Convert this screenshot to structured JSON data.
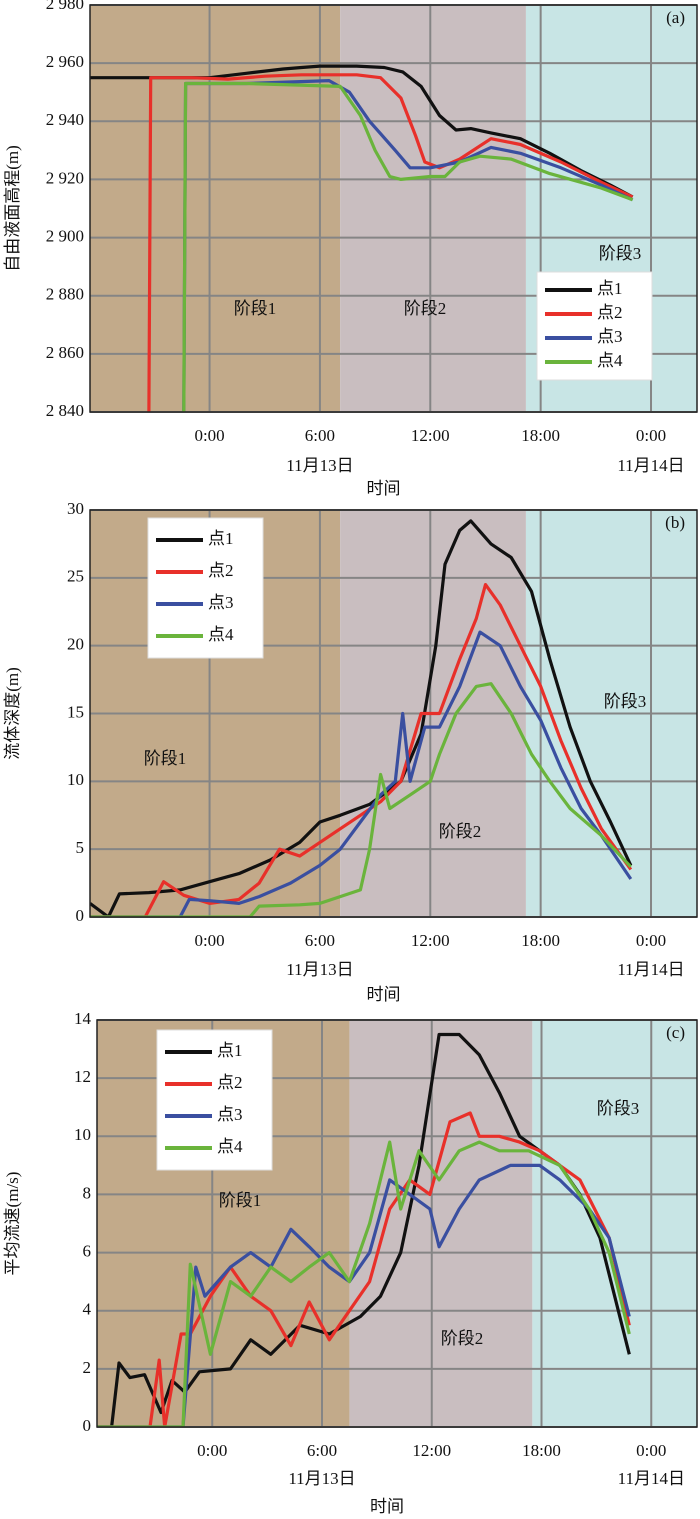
{
  "chart_data": [
    {
      "type": "line",
      "panel_label": "(a)",
      "ylabel": "自由液面高程(m)",
      "xlabel": "时间",
      "xlim": [
        -6.5,
        26.5
      ],
      "ylim": [
        2840,
        2980
      ],
      "xticks": [
        {
          "value": 0,
          "label": "0:00"
        },
        {
          "value": 6,
          "label": "6:00"
        },
        {
          "value": 12,
          "label": "12:00"
        },
        {
          "value": 18,
          "label": "18:00"
        },
        {
          "value": 24,
          "label": "0:00"
        }
      ],
      "date_labels": [
        {
          "value": 6,
          "label": "11月13日"
        },
        {
          "value": 24,
          "label": "11月14日"
        }
      ],
      "yticks": [
        {
          "value": 2840,
          "label": "2 840"
        },
        {
          "value": 2860,
          "label": "2 860"
        },
        {
          "value": 2880,
          "label": "2 880"
        },
        {
          "value": 2900,
          "label": "2 900"
        },
        {
          "value": 2920,
          "label": "2 920"
        },
        {
          "value": 2940,
          "label": "2 940"
        },
        {
          "value": 2960,
          "label": "2 960"
        },
        {
          "value": 2980,
          "label": "2 980"
        }
      ],
      "grid": true,
      "legend": "lower right",
      "stages": [
        {
          "name": "阶段1",
          "start": -6.5,
          "end": 7.1,
          "color": "#c2aa8a"
        },
        {
          "name": "阶段2",
          "start": 7.1,
          "end": 17.2,
          "color": "#c9bec0"
        },
        {
          "name": "阶段3",
          "start": 17.2,
          "end": 26.5,
          "color": "#c8e5e5"
        }
      ],
      "series": [
        {
          "name": "点1",
          "color": "#111111",
          "x": [
            -6.5,
            -2,
            0,
            2,
            4,
            5,
            6,
            8,
            9.5,
            10.5,
            11.5,
            12.5,
            13.4,
            14.2,
            15.3,
            16.9,
            18.5,
            20.2,
            21.8,
            23
          ],
          "values": [
            2955,
            2955,
            2955,
            2956.5,
            2958,
            2958.5,
            2959,
            2959,
            2958.5,
            2957,
            2952,
            2942,
            2937,
            2937.5,
            2936,
            2934,
            2929,
            2923,
            2918,
            2914
          ]
        },
        {
          "name": "点2",
          "color": "#e8302a",
          "x": [
            -3.3,
            -3.2,
            -1,
            1,
            3,
            5,
            8,
            9.3,
            10.4,
            11.2,
            11.7,
            12.5,
            13.6,
            15.3,
            16.9,
            19.1,
            21.3,
            23
          ],
          "values": [
            2840,
            2955,
            2955,
            2954.5,
            2955.5,
            2956,
            2956,
            2955,
            2948,
            2935,
            2926,
            2924,
            2927,
            2934,
            2932,
            2926,
            2919,
            2914
          ]
        },
        {
          "name": "点3",
          "color": "#3a4fa0",
          "x": [
            -1.4,
            -1.3,
            2,
            6.5,
            7.6,
            8.7,
            10.1,
            10.9,
            12,
            13.6,
            15.3,
            16.9,
            19.1,
            21.3,
            23
          ],
          "values": [
            2840,
            2953,
            2953,
            2954,
            2950,
            2940,
            2930,
            2924,
            2924,
            2926,
            2931,
            2929,
            2924,
            2918,
            2913
          ]
        },
        {
          "name": "点4",
          "color": "#6ab43c",
          "x": [
            -1.4,
            -1.3,
            2,
            7.1,
            8.2,
            9,
            9.8,
            10.4,
            12,
            12.8,
            13.6,
            14.7,
            16.4,
            18.5,
            21.3,
            23
          ],
          "values": [
            2840,
            2953,
            2953,
            2952,
            2942,
            2930,
            2921,
            2920,
            2921,
            2921,
            2926,
            2928,
            2927,
            2922,
            2917,
            2913
          ]
        }
      ]
    },
    {
      "type": "line",
      "panel_label": "(b)",
      "ylabel": "流体深度(m)",
      "xlabel": "时间",
      "xlim": [
        -6.5,
        26.5
      ],
      "ylim": [
        0,
        30
      ],
      "xticks": [
        {
          "value": 0,
          "label": "0:00"
        },
        {
          "value": 6,
          "label": "6:00"
        },
        {
          "value": 12,
          "label": "12:00"
        },
        {
          "value": 18,
          "label": "18:00"
        },
        {
          "value": 24,
          "label": "0:00"
        }
      ],
      "date_labels": [
        {
          "value": 6,
          "label": "11月13日"
        },
        {
          "value": 24,
          "label": "11月14日"
        }
      ],
      "yticks": [
        0,
        5,
        10,
        15,
        20,
        25,
        30
      ],
      "grid": true,
      "legend": "upper left",
      "stages": [
        {
          "name": "阶段1",
          "start": -6.5,
          "end": 7.1,
          "color": "#c2aa8a"
        },
        {
          "name": "阶段2",
          "start": 7.1,
          "end": 17.2,
          "color": "#c9bec0"
        },
        {
          "name": "阶段3",
          "start": 17.2,
          "end": 26.5,
          "color": "#c8e5e5"
        }
      ],
      "series": [
        {
          "name": "点1",
          "color": "#111111",
          "x": [
            -6.5,
            -5.5,
            -4.9,
            -3.3,
            -1.6,
            0,
            1.6,
            3.3,
            4.9,
            6,
            7.1,
            8.7,
            10.4,
            11.5,
            12.3,
            12.8,
            13.6,
            14.2,
            15.3,
            16.4,
            17.5,
            18.5,
            19.6,
            20.7,
            21.8,
            22.9
          ],
          "values": [
            1,
            0,
            1.7,
            1.8,
            2,
            2.6,
            3.2,
            4.2,
            5.5,
            7,
            7.5,
            8.3,
            10,
            13.5,
            20,
            26,
            28.5,
            29.2,
            27.5,
            26.5,
            24,
            19,
            14,
            10,
            7,
            3.8
          ]
        },
        {
          "name": "点2",
          "color": "#e8302a",
          "x": [
            -6.5,
            -3.5,
            -2.5,
            -1.4,
            0,
            1.6,
            2.7,
            3.8,
            4.9,
            6,
            7.1,
            8.2,
            9.3,
            10.4,
            11.5,
            12.5,
            13.6,
            14.5,
            15,
            15.8,
            16.9,
            18,
            19.1,
            20.2,
            21.3,
            22.9
          ],
          "values": [
            0,
            0,
            2.6,
            1.6,
            1,
            1.3,
            2.5,
            5,
            4.5,
            5.5,
            6.5,
            7.5,
            8.5,
            10,
            15,
            15,
            19,
            22,
            24.5,
            23,
            20,
            17,
            13,
            9.5,
            6.5,
            3.5
          ]
        },
        {
          "name": "点3",
          "color": "#3a4fa0",
          "x": [
            -6.5,
            -1.6,
            -1.1,
            0,
            1.6,
            2.7,
            4.4,
            6,
            7.1,
            8.2,
            9.3,
            10.1,
            10.5,
            10.9,
            11.7,
            12.5,
            13.6,
            14.7,
            15.8,
            16.9,
            18,
            19.1,
            20.2,
            21.3,
            22.9
          ],
          "values": [
            0,
            0,
            1.3,
            1.2,
            1,
            1.5,
            2.5,
            3.8,
            5,
            7,
            9,
            10,
            15,
            10,
            14,
            14,
            17,
            21,
            20,
            17,
            14.5,
            11,
            8,
            6,
            2.8
          ]
        },
        {
          "name": "点4",
          "color": "#6ab43c",
          "x": [
            -6.5,
            2.2,
            2.7,
            4.9,
            6,
            7.1,
            8.2,
            8.7,
            9.3,
            9.8,
            10.9,
            12,
            12.5,
            13.4,
            14.5,
            15.3,
            16.4,
            17.5,
            18.5,
            19.6,
            21.3,
            22.9
          ],
          "values": [
            0,
            0,
            0.8,
            0.9,
            1,
            1.5,
            2,
            5,
            10.5,
            8,
            9,
            10,
            12,
            15,
            17,
            17.2,
            15,
            12,
            10,
            8,
            6,
            3.7
          ]
        }
      ]
    },
    {
      "type": "line",
      "panel_label": "(c)",
      "ylabel": "平均流速(m/s)",
      "xlabel": "时间",
      "xlim": [
        -6.3,
        26.5
      ],
      "ylim": [
        0,
        14
      ],
      "xticks": [
        {
          "value": 0,
          "label": "0:00"
        },
        {
          "value": 6,
          "label": "6:00"
        },
        {
          "value": 12,
          "label": "12:00"
        },
        {
          "value": 18,
          "label": "18:00"
        },
        {
          "value": 24,
          "label": "0:00"
        }
      ],
      "date_labels": [
        {
          "value": 6,
          "label": "11月13日"
        },
        {
          "value": 24,
          "label": "11月14日"
        }
      ],
      "yticks": [
        0,
        2,
        4,
        6,
        8,
        10,
        12,
        14
      ],
      "grid": true,
      "legend": "upper left",
      "stages": [
        {
          "name": "阶段1",
          "start": -6.3,
          "end": 7.5,
          "color": "#c2aa8a"
        },
        {
          "name": "阶段2",
          "start": 7.5,
          "end": 17.5,
          "color": "#c9bec0"
        },
        {
          "name": "阶段3",
          "start": 17.5,
          "end": 26.5,
          "color": "#c8e5e5"
        }
      ],
      "series": [
        {
          "name": "点1",
          "color": "#111111",
          "x": [
            -6.3,
            -5.5,
            -5.1,
            -4.5,
            -3.7,
            -2.8,
            -2.2,
            -1.5,
            -0.7,
            1,
            2.1,
            3.2,
            4.8,
            6.4,
            8.1,
            9.2,
            10.3,
            11.3,
            12.4,
            13.5,
            14.6,
            15.7,
            16.8,
            17.9,
            19,
            20.1,
            21.2,
            22.8
          ],
          "values": [
            0,
            0,
            2.2,
            1.7,
            1.8,
            0.5,
            1.6,
            1.2,
            1.9,
            2,
            3,
            2.5,
            3.5,
            3.2,
            3.8,
            4.5,
            6,
            9,
            13.5,
            13.5,
            12.8,
            11.5,
            10,
            9.5,
            9,
            8,
            6.5,
            2.5
          ]
        },
        {
          "name": "点2",
          "color": "#e8302a",
          "x": [
            -6.3,
            -3.4,
            -2.9,
            -2.6,
            -1.7,
            -1.2,
            -0.1,
            1,
            2.1,
            3.2,
            4.3,
            5.3,
            6.4,
            7.5,
            8.6,
            9.7,
            10.8,
            11.9,
            13,
            14.1,
            14.6,
            15.7,
            16.8,
            17.9,
            19,
            20.1,
            21.7,
            22.8
          ],
          "values": [
            0,
            0,
            2.3,
            0,
            3.2,
            3.2,
            4.5,
            5.5,
            4.5,
            4,
            2.8,
            4.3,
            3,
            4,
            5,
            7.5,
            8.5,
            8,
            10.5,
            10.8,
            10,
            10,
            9.8,
            9.5,
            9,
            8.5,
            6.5,
            3.5
          ]
        },
        {
          "name": "点3",
          "color": "#3a4fa0",
          "x": [
            -6.3,
            -1.6,
            -0.9,
            -0.4,
            1,
            2.1,
            3.2,
            4.3,
            5.3,
            6.4,
            7.5,
            8.6,
            9.7,
            10.8,
            11.9,
            12.4,
            13.5,
            14.6,
            16.3,
            17.9,
            19,
            20.6,
            21.7,
            22.8
          ],
          "values": [
            0,
            0,
            5.5,
            4.5,
            5.5,
            6,
            5.5,
            6.8,
            6.2,
            5.5,
            5,
            6,
            8.5,
            8,
            7.5,
            6.2,
            7.5,
            8.5,
            9,
            9,
            8.5,
            7.5,
            6.5,
            3.8
          ]
        },
        {
          "name": "点4",
          "color": "#6ab43c",
          "x": [
            -6.3,
            -1.6,
            -1.2,
            -0.1,
            1,
            2.1,
            3.2,
            4.3,
            5.3,
            6.4,
            7.5,
            8.6,
            9.7,
            10.3,
            11.3,
            12.4,
            13.5,
            14.6,
            15.7,
            17.3,
            19,
            20.6,
            21.7,
            22.8
          ],
          "values": [
            0,
            0,
            5.6,
            2.5,
            5,
            4.5,
            5.5,
            5,
            5.5,
            6,
            5,
            7,
            9.8,
            7.5,
            9.5,
            8.5,
            9.5,
            9.8,
            9.5,
            9.5,
            9,
            7.5,
            6,
            3.2
          ]
        }
      ]
    }
  ]
}
